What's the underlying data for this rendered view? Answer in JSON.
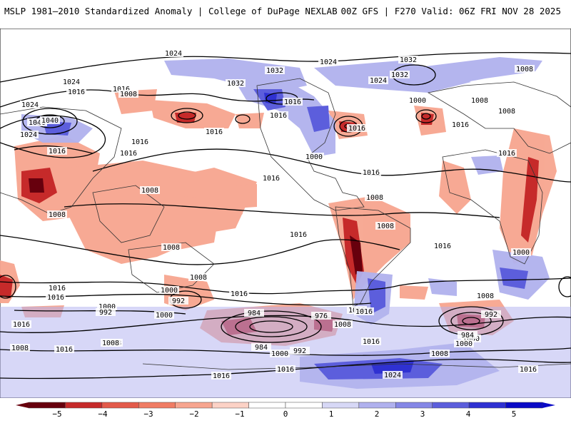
{
  "header": {
    "left": "MSLP 1981–2010 Standardized Anomaly | College of DuPage NEXLAB",
    "right": "00Z GFS | F270 Valid: 06Z FRI NOV 28 2025"
  },
  "map": {
    "isobar_labels": [
      "1024",
      "1032",
      "1024",
      "1032",
      "1016",
      "1016",
      "1024",
      "1008",
      "1016",
      "1016",
      "1024",
      "1032",
      "1024",
      "1040",
      "1032",
      "1000",
      "1040",
      "1024",
      "1016",
      "1016",
      "1016",
      "1000",
      "1016",
      "1016",
      "1016",
      "1016",
      "1008",
      "1016",
      "1008",
      "1008",
      "1008",
      "1008",
      "1016",
      "1008",
      "1016",
      "1008",
      "1016",
      "1016",
      "1000",
      "1016",
      "1008",
      "1016",
      "1000",
      "992",
      "992",
      "1016",
      "1000",
      "1016",
      "1008",
      "984",
      "976",
      "992",
      "1000",
      "984",
      "1016",
      "1008",
      "984",
      "1000",
      "992",
      "1008",
      "1000",
      "1016",
      "1008",
      "1008",
      "1016",
      "1016",
      "1016",
      "1024",
      "1000",
      "1008",
      "1016",
      "1008"
    ],
    "colors": {
      "neg_strong": "#8b0000",
      "neg": "#f2a08e",
      "pos": "#9999ee",
      "pos_strong": "#2222cc",
      "contour": "#000000"
    }
  },
  "colorbar": {
    "ticks": [
      "−5",
      "−4",
      "−3",
      "−2",
      "−1",
      "0",
      "1",
      "2",
      "3",
      "4",
      "5"
    ],
    "colors": [
      "#67000d",
      "#c62a2a",
      "#e35a4a",
      "#f07c64",
      "#f7a58f",
      "#fcd2c6",
      "#ffffff",
      "#ffffff",
      "#d7d8f6",
      "#b0b1ee",
      "#8587e6",
      "#5c5edc",
      "#2f31d2",
      "#0a0ac6"
    ]
  }
}
